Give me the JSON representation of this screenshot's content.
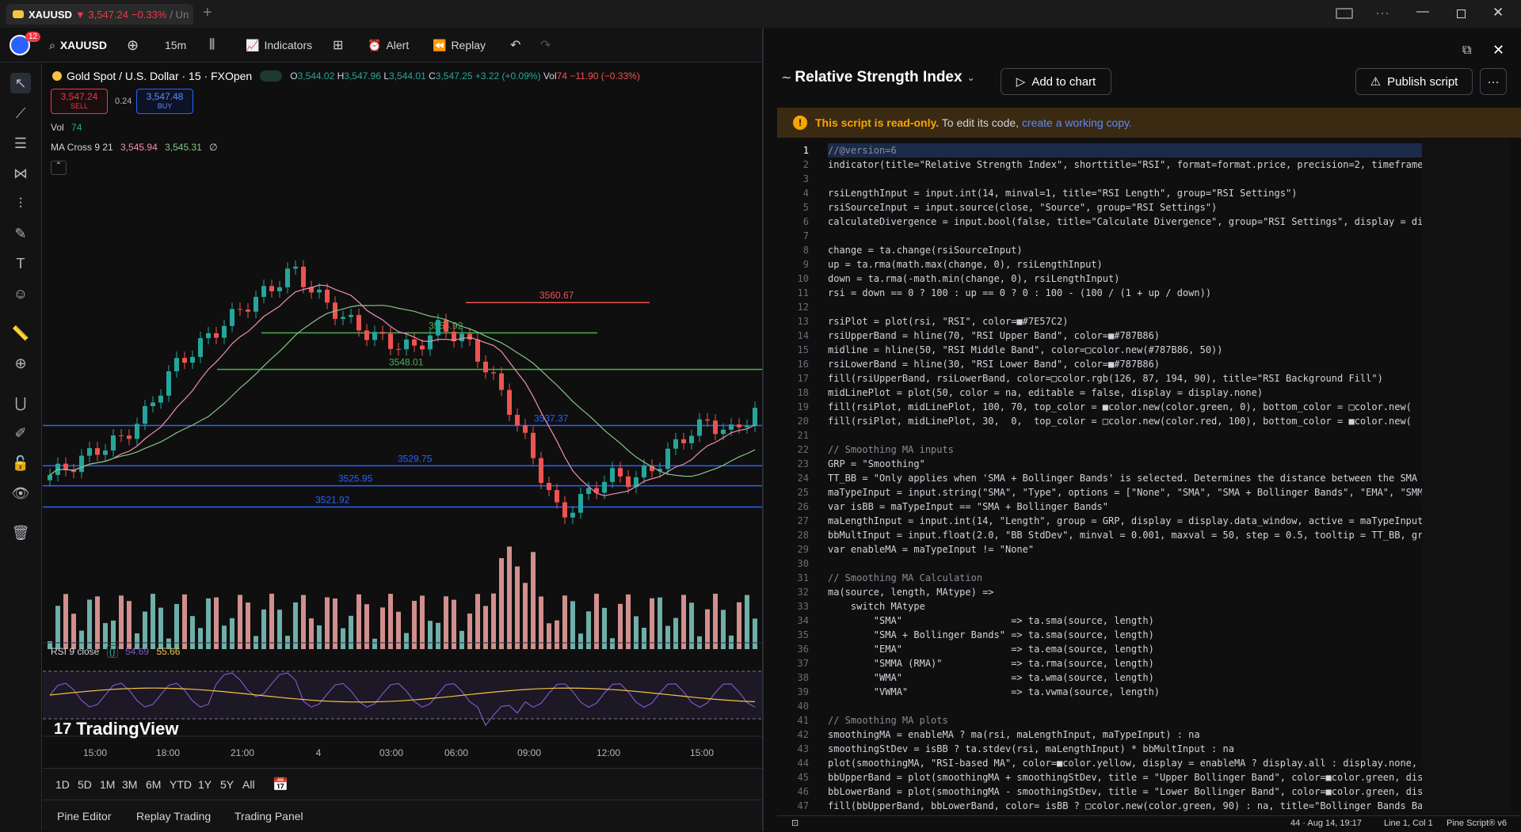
{
  "window": {
    "tab_title": "XAUUSD",
    "tab_price": "▼ 3,547.24",
    "tab_change": "−0.33%",
    "tab_suffix": "/ Un",
    "new_tab": "+"
  },
  "toolbar": {
    "notif_count": "12",
    "symbol": "XAUUSD",
    "interval": "15m",
    "indicators": "Indicators",
    "alert": "Alert",
    "replay": "Replay"
  },
  "chart": {
    "title": "Gold Spot / U.S. Dollar · 15 · FXOpen",
    "o_label": "O",
    "o": "3,544.02",
    "h_label": "H",
    "h": "3,547.96",
    "l_label": "L",
    "l": "3,544.01",
    "c_label": "C",
    "c": "3,547.25",
    "change": "+3.22 (+0.09%)",
    "vol_label": "Vol",
    "vol_hdr": "74",
    "vol_change": "−11.90 (−0.33%)",
    "sell_price": "3,547.24",
    "sell_label": "SELL",
    "spread": "0.24",
    "buy_price": "3,547.48",
    "buy_label": "BUY",
    "vol_row": "Vol",
    "vol_val": "74",
    "ma_label": "MA Cross 9 21",
    "ma1": "3,545.94",
    "ma2": "3,545.31",
    "ma3": "∅",
    "levels": [
      "3560.67",
      "3554.92",
      "3548.01",
      "3537.37",
      "3529.75",
      "3525.95",
      "3521.92"
    ],
    "rsi_label": "RSI 9 close",
    "rsi_v1": "54.69",
    "rsi_v2": "55.66",
    "watermark": "TradingView",
    "time_ticks": [
      "15:00",
      "18:00",
      "21:00",
      "4",
      "03:00",
      "06:00",
      "09:00",
      "12:00",
      "15:00"
    ]
  },
  "ranges": [
    "1D",
    "5D",
    "1M",
    "3M",
    "6M",
    "YTD",
    "1Y",
    "5Y",
    "All"
  ],
  "bottom_tabs": [
    "Pine Editor",
    "Replay Trading",
    "Trading Panel"
  ],
  "editor": {
    "title": "Relative Strength Index",
    "add_btn": "Add to chart",
    "publish_btn": "Publish script",
    "warn_bold": "This script is read-only.",
    "warn_text": " To edit its code, ",
    "warn_link": "create a working copy.",
    "status_left": "44 · Aug 14, 19:17",
    "status_pos": "Line 1, Col 1",
    "status_ver": "Pine Script® v6"
  },
  "code": [
    "//@version=6",
    "indicator(title=\"Relative Strength Index\", shorttitle=\"RSI\", format=format.price, precision=2, timeframe=",
    "",
    "rsiLengthInput = input.int(14, minval=1, title=\"RSI Length\", group=\"RSI Settings\")",
    "rsiSourceInput = input.source(close, \"Source\", group=\"RSI Settings\")",
    "calculateDivergence = input.bool(false, title=\"Calculate Divergence\", group=\"RSI Settings\", display = dis",
    "",
    "change = ta.change(rsiSourceInput)",
    "up = ta.rma(math.max(change, 0), rsiLengthInput)",
    "down = ta.rma(-math.min(change, 0), rsiLengthInput)",
    "rsi = down == 0 ? 100 : up == 0 ? 0 : 100 - (100 / (1 + up / down))",
    "",
    "rsiPlot = plot(rsi, \"RSI\", color=■#7E57C2)",
    "rsiUpperBand = hline(70, \"RSI Upper Band\", color=■#787B86)",
    "midline = hline(50, \"RSI Middle Band\", color=□color.new(#787B86, 50))",
    "rsiLowerBand = hline(30, \"RSI Lower Band\", color=■#787B86)",
    "fill(rsiUpperBand, rsiLowerBand, color=□color.rgb(126, 87, 194, 90), title=\"RSI Background Fill\")",
    "midLinePlot = plot(50, color = na, editable = false, display = display.none)",
    "fill(rsiPlot, midLinePlot, 100, 70, top_color = ■color.new(color.green, 0), bottom_color = □color.new(",
    "fill(rsiPlot, midLinePlot, 30,  0,  top_color = □color.new(color.red, 100), bottom_color = ■color.new(",
    "",
    "// Smoothing MA inputs",
    "GRP = \"Smoothing\"",
    "TT_BB = \"Only applies when 'SMA + Bollinger Bands' is selected. Determines the distance between the SMA a",
    "maTypeInput = input.string(\"SMA\", \"Type\", options = [\"None\", \"SMA\", \"SMA + Bollinger Bands\", \"EMA\", \"SMMA",
    "var isBB = maTypeInput == \"SMA + Bollinger Bands\"",
    "maLengthInput = input.int(14, \"Length\", group = GRP, display = display.data_window, active = maTypeInput",
    "bbMultInput = input.float(2.0, \"BB StdDev\", minval = 0.001, maxval = 50, step = 0.5, tooltip = TT_BB, gro",
    "var enableMA = maTypeInput != \"None\"",
    "",
    "// Smoothing MA Calculation",
    "ma(source, length, MAtype) =>",
    "    switch MAtype",
    "        \"SMA\"                   => ta.sma(source, length)",
    "        \"SMA + Bollinger Bands\" => ta.sma(source, length)",
    "        \"EMA\"                   => ta.ema(source, length)",
    "        \"SMMA (RMA)\"            => ta.rma(source, length)",
    "        \"WMA\"                   => ta.wma(source, length)",
    "        \"VWMA\"                  => ta.vwma(source, length)",
    "",
    "// Smoothing MA plots",
    "smoothingMA = enableMA ? ma(rsi, maLengthInput, maTypeInput) : na",
    "smoothingStDev = isBB ? ta.stdev(rsi, maLengthInput) * bbMultInput : na",
    "plot(smoothingMA, \"RSI-based MA\", color=■color.yellow, display = enableMA ? display.all : display.none,",
    "bbUpperBand = plot(smoothingMA + smoothingStDev, title = \"Upper Bollinger Band\", color=■color.green, dis",
    "bbLowerBand = plot(smoothingMA - smoothingStDev, title = \"Lower Bollinger Band\", color=■color.green, dis",
    "fill(bbUpperBand, bbLowerBand, color= isBB ? □color.new(color.green, 90) : na, title=\"Bollinger Bands Ba"
  ],
  "colors": {
    "up": "#26a69a",
    "down": "#ef5350",
    "accent": "#2962ff",
    "ma_fast": "#f48fb1",
    "ma_slow": "#81c784",
    "rsi": "#7e57c2",
    "rsi_ma": "#f6c343"
  }
}
